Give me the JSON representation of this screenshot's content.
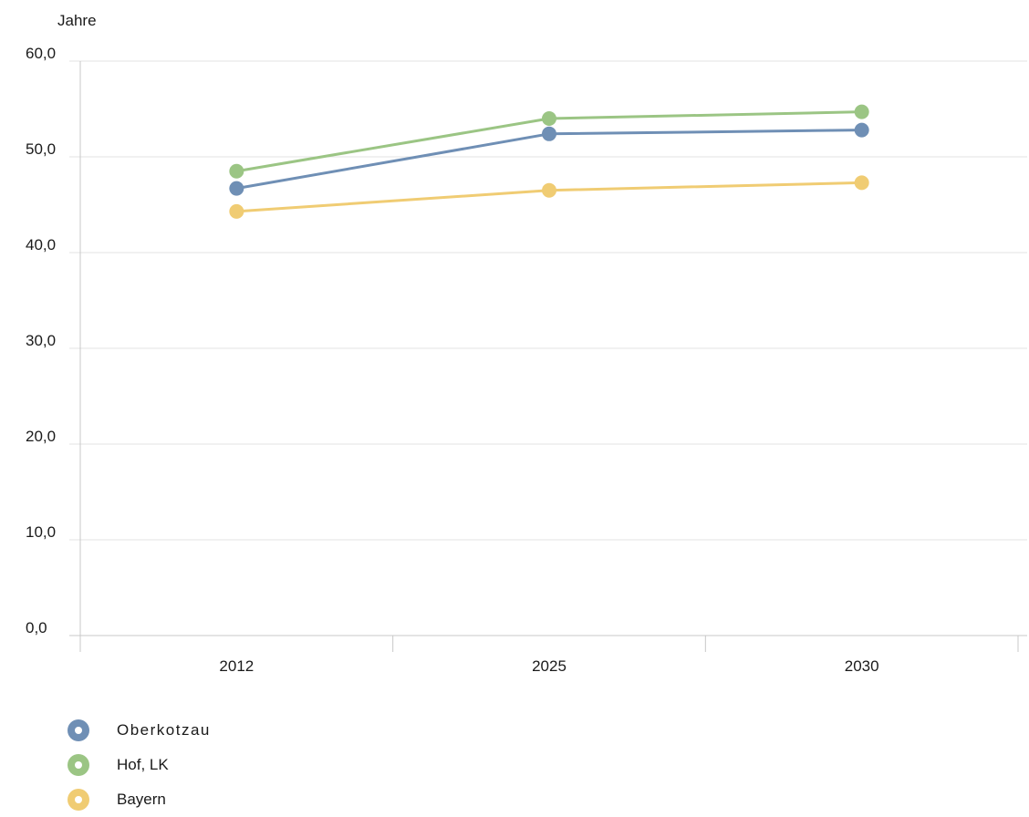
{
  "chart_data": {
    "type": "line",
    "ylabel": "Jahre",
    "x": [
      "2012",
      "2025",
      "2030"
    ],
    "y_ticks": [
      "0,0",
      "10,0",
      "20,0",
      "30,0",
      "40,0",
      "50,0",
      "60,0"
    ],
    "ylim": [
      0,
      60
    ],
    "grid": true,
    "legend_position": "bottom-left",
    "series": [
      {
        "name": "Oberkotzau",
        "color": "#6f8fb5",
        "values": [
          46.7,
          52.4,
          52.8
        ]
      },
      {
        "name": "Hof, LK",
        "color": "#9bc584",
        "values": [
          48.5,
          54.0,
          54.7
        ]
      },
      {
        "name": "Bayern",
        "color": "#f0cc73",
        "values": [
          44.3,
          46.5,
          47.3
        ]
      }
    ]
  }
}
